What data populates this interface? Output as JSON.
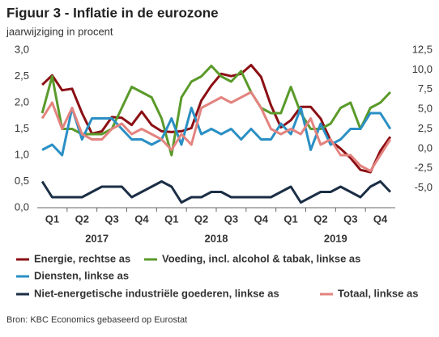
{
  "chart_data": {
    "type": "line",
    "title": "Figuur 3 - Inflatie in de eurozone",
    "subtitle": "jaarwijziging in procent",
    "categories": [
      null,
      "Q1",
      null,
      null,
      "Q2",
      null,
      null,
      "Q3",
      null,
      null,
      "Q4",
      null,
      null,
      "Q1",
      null,
      null,
      "Q2",
      null,
      null,
      "Q3",
      null,
      null,
      "Q4",
      null,
      null,
      "Q1",
      null,
      null,
      "Q2",
      null,
      null,
      "Q3",
      null,
      null,
      "Q4",
      null
    ],
    "years": [
      "2017",
      "2018",
      "2019"
    ],
    "ylim": [
      0,
      3
    ],
    "yticks": [
      {
        "value": 0,
        "label": "0,0"
      },
      {
        "value": 0.5,
        "label": "0,5"
      },
      {
        "value": 1,
        "label": "1,0"
      },
      {
        "value": 1.5,
        "label": "1,5"
      },
      {
        "value": 2,
        "label": "2,0"
      },
      {
        "value": 2.5,
        "label": "2,5"
      },
      {
        "value": 3,
        "label": "3,0"
      }
    ],
    "y2lim": [
      -7.5,
      12.5
    ],
    "y2ticks": [
      {
        "value": -5,
        "label": "-5,0"
      },
      {
        "value": -2.5,
        "label": "-2,5"
      },
      {
        "value": 0,
        "label": "0,0"
      },
      {
        "value": 2.5,
        "label": "2,5"
      },
      {
        "value": 5,
        "label": "5,0"
      },
      {
        "value": 7.5,
        "label": "7,5"
      },
      {
        "value": 10,
        "label": "10,0"
      },
      {
        "value": 12.5,
        "label": "12,5"
      }
    ],
    "series": [
      {
        "name": "Energie, rechtse as",
        "color": "#8b0f14",
        "axis": "y2",
        "values": [
          8.1,
          9.3,
          7.4,
          7.6,
          4.5,
          1.9,
          2.2,
          4.0,
          3.9,
          3.0,
          4.7,
          3.0,
          2.2,
          2.1,
          2.2,
          2.6,
          6.1,
          8.0,
          9.5,
          9.2,
          9.5,
          10.6,
          9.1,
          5.5,
          2.7,
          3.6,
          5.3,
          5.3,
          3.8,
          1.0,
          0.0,
          -1.2,
          -2.7,
          -3.0,
          -0.3,
          1.5
        ]
      },
      {
        "name": "Voeding, incl. alcohol & tabak, linkse as",
        "color": "#5a9a2a",
        "values": [
          1.8,
          2.5,
          1.5,
          1.5,
          1.4,
          1.4,
          1.4,
          1.5,
          1.9,
          2.3,
          2.2,
          2.1,
          1.7,
          1.0,
          2.1,
          2.4,
          2.5,
          2.7,
          2.5,
          2.4,
          2.6,
          2.2,
          1.9,
          1.8,
          1.8,
          2.3,
          1.8,
          1.5,
          1.5,
          1.6,
          1.9,
          2.0,
          1.5,
          1.9,
          2.0,
          2.2
        ]
      },
      {
        "name": "Diensten, linkse as",
        "color": "#2a8fc4",
        "values": [
          1.1,
          1.2,
          1.0,
          1.9,
          1.3,
          1.7,
          1.7,
          1.7,
          1.5,
          1.3,
          1.3,
          1.2,
          1.3,
          1.7,
          1.2,
          1.9,
          1.4,
          1.5,
          1.4,
          1.5,
          1.3,
          1.5,
          1.3,
          1.3,
          1.6,
          1.4,
          1.9,
          1.1,
          1.6,
          1.2,
          1.3,
          1.5,
          1.5,
          1.8,
          1.8,
          1.5
        ]
      },
      {
        "name": "Niet-energetische industriële goederen, linkse as",
        "color": "#1b2e45",
        "values": [
          0.5,
          0.2,
          0.2,
          0.2,
          0.2,
          0.3,
          0.4,
          0.4,
          0.4,
          0.2,
          0.3,
          0.4,
          0.5,
          0.4,
          0.1,
          0.2,
          0.2,
          0.3,
          0.3,
          0.2,
          0.2,
          0.2,
          0.2,
          0.2,
          0.3,
          0.4,
          0.1,
          0.2,
          0.3,
          0.3,
          0.4,
          0.3,
          0.2,
          0.4,
          0.5,
          0.3
        ]
      },
      {
        "name": "Totaal, linkse as",
        "color": "#e3837f",
        "values": [
          1.7,
          2.0,
          1.5,
          1.9,
          1.4,
          1.3,
          1.3,
          1.5,
          1.6,
          1.4,
          1.5,
          1.4,
          1.3,
          1.1,
          1.4,
          1.2,
          1.9,
          2.0,
          2.1,
          2.0,
          2.1,
          2.2,
          1.9,
          1.5,
          1.4,
          1.5,
          1.4,
          1.7,
          1.2,
          1.3,
          1.0,
          1.0,
          0.8,
          0.7,
          1.0,
          1.3
        ]
      }
    ],
    "source": "Bron: KBC Economics gebaseerd op Eurostat"
  }
}
